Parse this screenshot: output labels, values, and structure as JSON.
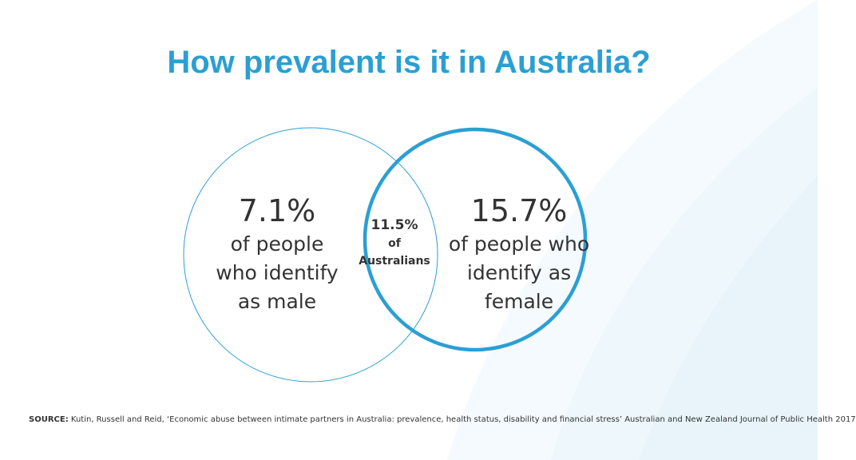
{
  "title": "How prevalent is it in Australia?",
  "venn": {
    "left": {
      "percent": "7.1%",
      "line1": "of people",
      "line2": "who identify",
      "line3": "as male"
    },
    "right": {
      "percent": "15.7%",
      "line1": "of people who",
      "line2": "identify as",
      "line3": "female"
    },
    "overlap": {
      "percent": "11.5%",
      "line1": "of",
      "line2": "Australians"
    }
  },
  "source": {
    "label": "SOURCE:",
    "text": "Kutin, Russell and Reid, ‘Economic abuse between intimate partners in Australia: prevalence, health status, disability and financial stress’ Australian and New Zealand Journal of Public Health 2017"
  },
  "colors": {
    "accent": "#2b9fd3",
    "text": "#333333",
    "background_tint": "#eef7fb"
  }
}
